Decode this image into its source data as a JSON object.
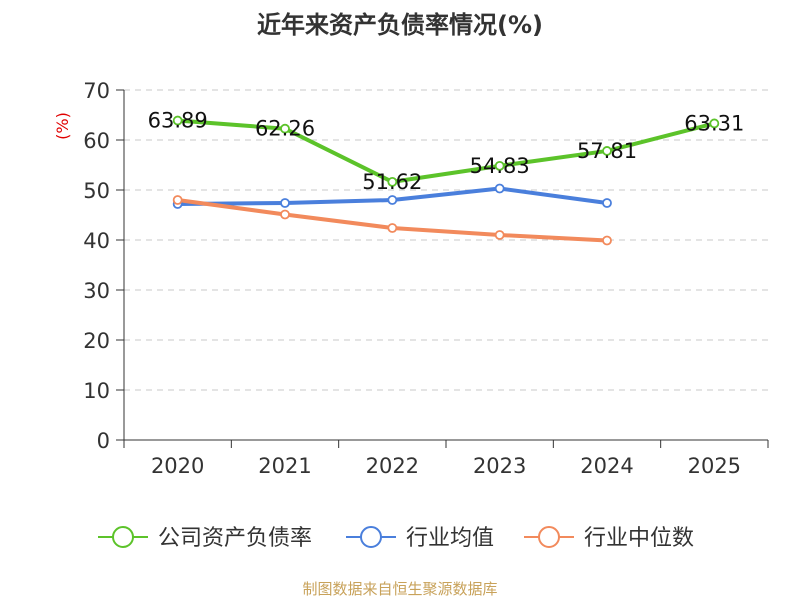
{
  "chart_data": {
    "type": "line",
    "title": "近年来资产负债率情况(%)",
    "ylabel": "(%)",
    "xlabel": "",
    "categories": [
      "2020",
      "2021",
      "2022",
      "2023",
      "2024",
      "2025"
    ],
    "ylim": [
      0,
      70
    ],
    "yticks": [
      0,
      10,
      20,
      30,
      40,
      50,
      60,
      70
    ],
    "grid": true,
    "legend_position": "bottom",
    "series": [
      {
        "name": "公司资产负债率",
        "color": "#5cc32a",
        "values": [
          63.89,
          62.26,
          51.62,
          54.83,
          57.81,
          63.31
        ],
        "labels": [
          "63.89",
          "62.26",
          "51.62",
          "54.83",
          "57.81",
          "63.31"
        ]
      },
      {
        "name": "行业均值",
        "color": "#4a7fdc",
        "values": [
          47.2,
          47.4,
          48.0,
          50.3,
          47.4,
          null
        ]
      },
      {
        "name": "行业中位数",
        "color": "#f28a5c",
        "values": [
          48.0,
          45.1,
          42.4,
          41.0,
          39.9,
          null
        ]
      }
    ]
  },
  "footer": {
    "source": "制图数据来自恒生聚源数据库"
  }
}
